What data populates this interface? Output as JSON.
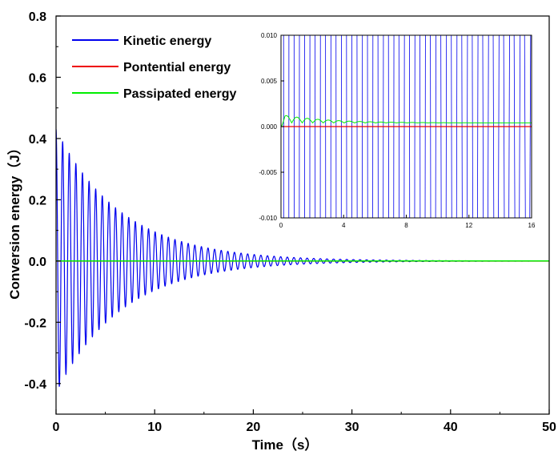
{
  "chart_data": [
    {
      "type": "line",
      "title": "",
      "xlabel": "Time（s）",
      "ylabel": "Conversion energy（J）",
      "xlim": [
        0,
        50
      ],
      "ylim": [
        -0.5,
        0.8
      ],
      "x_ticks": [
        "0",
        "10",
        "20",
        "30",
        "40",
        "50"
      ],
      "y_ticks": [
        "-0.4",
        "-0.2",
        "0.0",
        "0.2",
        "0.4",
        "0.6",
        "0.8"
      ],
      "legend_position": "top-left",
      "grid": false,
      "series": [
        {
          "name": "Kinetic energy",
          "color": "#0000ee",
          "description_values": {
            "initial_amplitude": 0.43,
            "period": 0.67,
            "decay_rate": 0.15,
            "amplitude_at_x": {
              "0": 0.43,
              "10": 0.1,
              "20": 0.02,
              "30": 0.004,
              "40": 0.001
            }
          }
        },
        {
          "name": "Pontential energy",
          "color": "#ee0000",
          "values": "0 for all x"
        },
        {
          "name": "Passipated energy",
          "color": "#00ee00",
          "values": "approximately 0.0004 for all x"
        }
      ]
    },
    {
      "type": "line",
      "title": "",
      "xlim": [
        0,
        16
      ],
      "ylim": [
        -0.01,
        0.01
      ],
      "x_ticks": [
        "0",
        "4",
        "8",
        "12",
        "16"
      ],
      "y_ticks": [
        "-0.010",
        "-0.005",
        "0.000",
        "0.005",
        "0.010"
      ],
      "series": [
        {
          "name": "Kinetic energy",
          "color": "#0000ee",
          "description": "oscillation clipped beyond ±0.010"
        },
        {
          "name": "Pontential energy",
          "color": "#ee0000",
          "value": 0
        },
        {
          "name": "Passipated energy",
          "color": "#00ee00",
          "peaks": [
            {
              "x": 0.35,
              "y": 0.0013
            },
            {
              "x": 1.0,
              "y": 0.0011
            }
          ],
          "settles_to": 0.0004
        }
      ]
    }
  ]
}
